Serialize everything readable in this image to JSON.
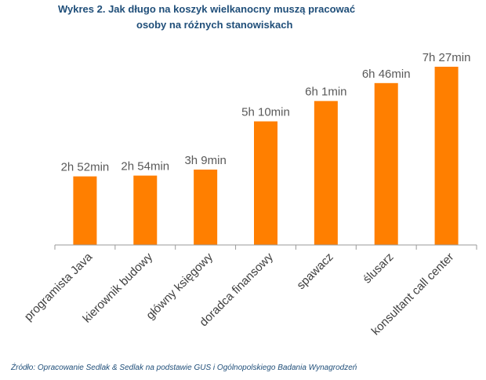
{
  "title": {
    "line1": "Wykres 2. Jak długo na koszyk wielkanocny muszą pracować",
    "line2": "osoby na różnych stanowiskach"
  },
  "source": "Źródło: Opracowanie Sedlak & Sedlak na podstawie GUS i Ogólnopolskiego Badania Wynagrodzeń",
  "chart_data": {
    "type": "bar",
    "categories": [
      "programista Java",
      "kierownik budowy",
      "główny księgowy",
      "doradca finansowy",
      "spawacz",
      "ślusarz",
      "konsultant call center"
    ],
    "values": [
      172,
      174,
      189,
      310,
      361,
      406,
      447
    ],
    "value_labels": [
      "2h 52min",
      "2h 54min",
      "3h 9min",
      "5h 10min",
      "6h 1min",
      "6h 46min",
      "7h 27min"
    ],
    "unit": "minutes",
    "ylim": [
      0,
      500
    ],
    "grid": false,
    "legend": "none",
    "bar_color": "#ff7f00"
  }
}
